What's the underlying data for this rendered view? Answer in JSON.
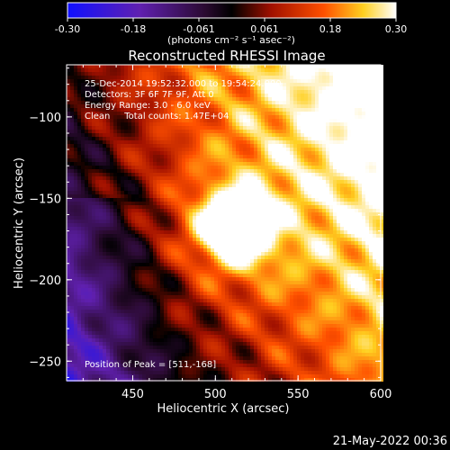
{
  "colorbar": {
    "ticks": [
      "-0.30",
      "-0.18",
      "-0.061",
      "0.061",
      "0.18",
      "0.30"
    ],
    "unit_label": "(photons cm⁻² s⁻¹ asec⁻²)",
    "range": [
      -0.3,
      0.3
    ]
  },
  "chart_data": {
    "type": "heatmap",
    "title": "Reconstructed RHESSI Image",
    "xlabel": "Heliocentric X (arcsec)",
    "ylabel": "Heliocentric Y (arcsec)",
    "xlim": [
      410,
      600
    ],
    "ylim": [
      -262,
      -68
    ],
    "xticks": [
      450,
      500,
      550,
      600
    ],
    "xtick_labels": [
      "450",
      "500",
      "550",
      "600"
    ],
    "yticks": [
      -100,
      -150,
      -200,
      -250
    ],
    "ytick_labels": [
      "−100",
      "−150",
      "−200",
      "−250"
    ],
    "annotations": [
      "25-Dec-2014 19:52:32.000 to 19:54:24.000",
      "Detectors: 3F 6F 7F 9F, Att 0",
      "Energy Range: 3.0 - 6.0 keV",
      "Clean     Total counts: 1.47E+04"
    ],
    "peak_label": "Position of Peak = [511,-168]",
    "peak": {
      "x": 511,
      "y": -168,
      "value": 0.3
    },
    "colormap": "rhessi-blue-purple-red-yellow-white"
  },
  "footer": {
    "timestamp": "21-May-2022 00:36"
  }
}
